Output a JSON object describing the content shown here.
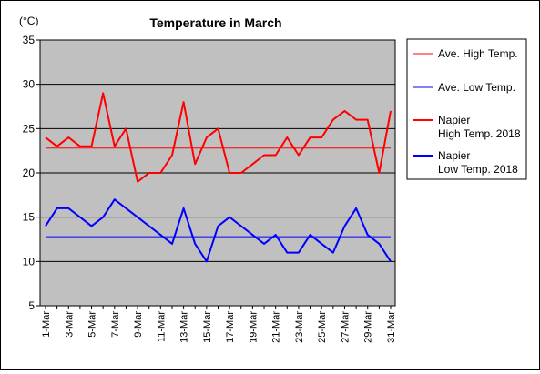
{
  "chart_data": {
    "type": "line",
    "title": "Temperature in March",
    "unit_label": "(°C)",
    "xlabel": "",
    "ylabel": "",
    "ylim": [
      5,
      35
    ],
    "yticks": [
      5,
      10,
      15,
      20,
      25,
      30,
      35
    ],
    "grid": true,
    "legend_position": "right",
    "categories": [
      "1-Mar",
      "2-Mar",
      "3-Mar",
      "4-Mar",
      "5-Mar",
      "6-Mar",
      "7-Mar",
      "8-Mar",
      "9-Mar",
      "10-Mar",
      "11-Mar",
      "12-Mar",
      "13-Mar",
      "14-Mar",
      "15-Mar",
      "16-Mar",
      "17-Mar",
      "18-Mar",
      "19-Mar",
      "20-Mar",
      "21-Mar",
      "22-Mar",
      "23-Mar",
      "24-Mar",
      "25-Mar",
      "26-Mar",
      "27-Mar",
      "28-Mar",
      "29-Mar",
      "30-Mar",
      "31-Mar"
    ],
    "tick_labels": [
      "1-Mar",
      "3-Mar",
      "5-Mar",
      "7-Mar",
      "9-Mar",
      "11-Mar",
      "13-Mar",
      "15-Mar",
      "17-Mar",
      "19-Mar",
      "21-Mar",
      "23-Mar",
      "25-Mar",
      "27-Mar",
      "29-Mar",
      "31-Mar"
    ],
    "series": [
      {
        "name": "Ave. High Temp.",
        "color": "#ff0000",
        "style": "thin",
        "values": [
          22.8,
          22.8,
          22.8,
          22.8,
          22.8,
          22.8,
          22.8,
          22.8,
          22.8,
          22.8,
          22.8,
          22.8,
          22.8,
          22.8,
          22.8,
          22.8,
          22.8,
          22.8,
          22.8,
          22.8,
          22.8,
          22.8,
          22.8,
          22.8,
          22.8,
          22.8,
          22.8,
          22.8,
          22.8,
          22.8,
          22.8
        ]
      },
      {
        "name": "Ave. Low Temp.",
        "color": "#0000ff",
        "style": "thin",
        "values": [
          12.8,
          12.8,
          12.8,
          12.8,
          12.8,
          12.8,
          12.8,
          12.8,
          12.8,
          12.8,
          12.8,
          12.8,
          12.8,
          12.8,
          12.8,
          12.8,
          12.8,
          12.8,
          12.8,
          12.8,
          12.8,
          12.8,
          12.8,
          12.8,
          12.8,
          12.8,
          12.8,
          12.8,
          12.8,
          12.8,
          12.8
        ]
      },
      {
        "name": "Napier High Temp. 2018",
        "name_lines": [
          "Napier",
          "High Temp. 2018"
        ],
        "color": "#ff0000",
        "style": "thick",
        "values": [
          24,
          23,
          24,
          23,
          23,
          29,
          23,
          25,
          19,
          20,
          20,
          22,
          28,
          21,
          24,
          25,
          20,
          20,
          21,
          22,
          22,
          24,
          22,
          24,
          24,
          26,
          27,
          26,
          26,
          20,
          27
        ]
      },
      {
        "name": "Napier Low Temp. 2018",
        "name_lines": [
          "Napier",
          "Low Temp. 2018"
        ],
        "color": "#0000ff",
        "style": "thick",
        "values": [
          14,
          16,
          16,
          15,
          14,
          15,
          17,
          16,
          15,
          14,
          13,
          12,
          16,
          12,
          10,
          14,
          15,
          14,
          13,
          12,
          13,
          11,
          11,
          13,
          12,
          11,
          14,
          16,
          13,
          12,
          10
        ]
      }
    ]
  }
}
